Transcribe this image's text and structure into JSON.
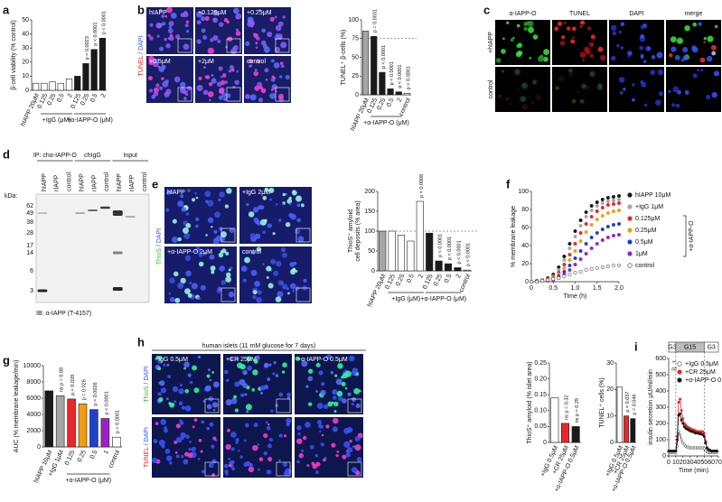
{
  "chart_data": [
    {
      "panel": "a",
      "type": "bar",
      "ylabel": "β-cell viability (% control)",
      "categories": [
        "hIAPP 20μM",
        "0.125",
        "0.25",
        "0.5",
        "2",
        "0.125",
        "0.25",
        "0.5",
        "2"
      ],
      "values": [
        5,
        5,
        6,
        5,
        8,
        10,
        19,
        29,
        37
      ],
      "colors": [
        "#ffffff",
        "#ffffff",
        "#ffffff",
        "#ffffff",
        "#ffffff",
        "#1a1a1a",
        "#1a1a1a",
        "#1a1a1a",
        "#1a1a1a"
      ],
      "groups": [
        "+IgG (μM)",
        "+α-IAPP-O (μM)"
      ],
      "annotations": [
        "p = 0.0023",
        "p < 0.0001",
        "p < 0.0001"
      ],
      "ylim": [
        0,
        50
      ],
      "yticks": [
        0,
        10,
        20,
        30,
        40,
        50
      ]
    },
    {
      "type": "bar",
      "ylabel": "TUNEL⁺ β-cells (%)",
      "categories": [
        "hIAPP 20μM",
        "0.125",
        "0.25",
        "0.5",
        "2",
        "control"
      ],
      "values": [
        85,
        78,
        30,
        8,
        4,
        2
      ],
      "colors": [
        "#a6a6a6",
        "#1a1a1a",
        "#1a1a1a",
        "#1a1a1a",
        "#1a1a1a",
        "#ffffff"
      ],
      "groups": [
        "+α-IAPP-O (μM)"
      ],
      "annotations": [
        "p = 0.0031",
        "p < 0.0001",
        "p < 0.0001",
        "p < 0.0001",
        "p < 0.0001"
      ],
      "reference_line": 75,
      "ylim": [
        0,
        100
      ],
      "yticks": [
        0,
        25,
        50,
        75,
        100
      ]
    },
    {
      "type": "bar",
      "ylabel": [
        "ThioS⁺ amyloid",
        "cell deposits (% area)"
      ],
      "categories": [
        "hIAPP 20μM",
        "0.125",
        "0.25",
        "0.5",
        "2",
        "0.125",
        "0.25",
        "0.5",
        "2",
        "control"
      ],
      "values": [
        100,
        100,
        90,
        75,
        175,
        95,
        25,
        18,
        8,
        2
      ],
      "colors": [
        "#a6a6a6",
        "#ffffff",
        "#ffffff",
        "#ffffff",
        "#ffffff",
        "#1a1a1a",
        "#1a1a1a",
        "#1a1a1a",
        "#1a1a1a",
        "#ffffff"
      ],
      "groups": [
        "+IgG (μM)",
        "+α-IAPP-O (μM)"
      ],
      "annotations": [
        "p = 0.0008",
        "p < 0.0001",
        "p < 0.0001",
        "p < 0.0001",
        "p < 0.0001"
      ],
      "reference_line": 100,
      "ylim": [
        0,
        200
      ],
      "yticks": [
        0,
        50,
        100,
        150,
        200
      ]
    },
    {
      "panel": "f",
      "type": "line",
      "xlabel": "Time (h)",
      "ylabel": "% membrane leakage",
      "x": [
        0,
        0.125,
        0.25,
        0.375,
        0.5,
        0.625,
        0.75,
        0.875,
        1,
        1.125,
        1.25,
        1.375,
        1.5,
        1.625,
        1.75,
        1.875,
        2
      ],
      "series": [
        {
          "name": "hIAPP 10μM",
          "color": "#1a1a1a",
          "values": [
            0,
            1,
            2,
            4,
            8,
            16,
            28,
            42,
            56,
            68,
            77,
            84,
            88,
            91,
            93,
            94,
            95
          ]
        },
        {
          "name": "+IgG 1μM",
          "color": "#a6a6a6",
          "values": [
            0,
            1,
            2,
            3,
            6,
            13,
            24,
            37,
            50,
            62,
            72,
            79,
            84,
            87,
            89,
            90,
            91
          ]
        },
        {
          "name": "0.125μM",
          "color": "#e8282a",
          "values": [
            0,
            1,
            1,
            3,
            5,
            10,
            19,
            30,
            42,
            54,
            64,
            72,
            78,
            82,
            85,
            86,
            87
          ]
        },
        {
          "name": "0.25μM",
          "color": "#f39c12",
          "values": [
            0,
            0,
            1,
            2,
            4,
            8,
            15,
            24,
            34,
            45,
            55,
            63,
            69,
            73,
            76,
            78,
            79
          ]
        },
        {
          "name": "0.5μM",
          "color": "#1f3fcc",
          "values": [
            0,
            0,
            1,
            2,
            3,
            6,
            11,
            18,
            26,
            34,
            42,
            49,
            54,
            58,
            61,
            63,
            64
          ]
        },
        {
          "name": "1μM",
          "color": "#a020c8",
          "values": [
            0,
            0,
            1,
            1,
            2,
            4,
            8,
            13,
            19,
            25,
            31,
            37,
            42,
            46,
            49,
            51,
            52
          ]
        },
        {
          "name": "control",
          "color": "#ffffff",
          "values": [
            0,
            0,
            1,
            2,
            3,
            4,
            6,
            8,
            10,
            11,
            13,
            14,
            15,
            16,
            17,
            18,
            18
          ]
        }
      ],
      "legend_bracket": "+α-IAPP-O",
      "xlim": [
        0,
        2
      ],
      "xticks": [
        0,
        0.5,
        {
          "value": 1,
          "label": "1.0"
        },
        1.5,
        {
          "value": 2,
          "label": "2.0"
        }
      ],
      "ylim": [
        0,
        100
      ],
      "yticks": [
        0,
        20,
        40,
        60,
        80,
        100
      ]
    },
    {
      "panel": "g",
      "type": "bar",
      "ylabel": "AUC (% membrane leakage/min)",
      "categories": [
        "hIAPP 10μM",
        "+IgG 1μM",
        "0.125",
        "0.25",
        "0.5",
        "1",
        "control"
      ],
      "values": [
        6900,
        6300,
        5900,
        5300,
        4600,
        3500,
        1200
      ],
      "colors": [
        "#1a1a1a",
        "#a6a6a6",
        "#e8282a",
        "#f39c12",
        "#1f3fcc",
        "#a020c8",
        "#ffffff"
      ],
      "groups": [
        "+α-IAPP-O (μM)"
      ],
      "annotations": [
        "ns p = 0.88",
        "p = 0.028",
        "p = 0.026",
        "p = 0.0026",
        "p < 0.0001",
        "p < 0.0001"
      ],
      "ylim": [
        0,
        10000
      ],
      "yticks": [
        0,
        2000,
        4000,
        6000,
        8000,
        10000
      ]
    },
    {
      "type": "bar",
      "ylabel": "ThioS⁺ amyloid (% islet area)",
      "categories": [
        "+IgG 0.5μM",
        "+CR 25μM",
        "+α-IAPP-O 0.5μM"
      ],
      "values": [
        0.14,
        0.06,
        0.05
      ],
      "colors": [
        "#ffffff",
        "#e8282a",
        "#1a1a1a"
      ],
      "annotations": [
        "ns p = 0.32",
        "ns p = 0.29"
      ],
      "ylim": [
        0,
        0.25
      ],
      "yticks": [
        0,
        0.05,
        {
          "value": 0.1,
          "label": "0.10"
        },
        0.15,
        {
          "value": 0.2,
          "label": "0.20"
        },
        0.25
      ]
    },
    {
      "type": "bar",
      "ylabel": "TUNEL⁺ cells (%)",
      "categories": [
        "+IgG 0.5μM",
        "+CR 25μM",
        "+α-IAPP-O 0.5μM"
      ],
      "values": [
        21,
        10,
        9
      ],
      "colors": [
        "#ffffff",
        "#e8282a",
        "#1a1a1a"
      ],
      "annotations": [
        "p = 0.037",
        "p = 0.046"
      ],
      "ylim": [
        0,
        30
      ],
      "yticks": [
        0,
        10,
        20,
        30
      ]
    },
    {
      "panel": "i",
      "type": "line",
      "connect": true,
      "xlabel": "Time (min)",
      "ylabel": "insulin secretion μU/ml/min",
      "x": [
        0,
        2,
        4,
        6,
        8,
        10,
        12,
        14,
        16,
        18,
        20,
        22,
        24,
        26,
        28,
        30,
        32,
        34,
        36,
        38,
        40,
        42,
        44,
        46,
        48,
        50,
        52,
        54,
        56,
        58,
        60,
        62,
        64,
        66,
        68
      ],
      "series": [
        {
          "name": "+IgG 0.5μM",
          "color": "#ffffff",
          "values": [
            20,
            20,
            20,
            20,
            20,
            20,
            60,
            150,
            130,
            100,
            80,
            70,
            60,
            55,
            55,
            50,
            50,
            50,
            50,
            50,
            50,
            50,
            50,
            50,
            50,
            45,
            35,
            25,
            20,
            20,
            20,
            20,
            20,
            20,
            20
          ]
        },
        {
          "name": "+CR 25μM",
          "color": "#e8282a",
          "values": [
            30,
            30,
            30,
            30,
            30,
            30,
            120,
            330,
            350,
            280,
            230,
            200,
            190,
            180,
            175,
            170,
            165,
            160,
            160,
            155,
            150,
            150,
            150,
            150,
            150,
            140,
            90,
            50,
            40,
            35,
            30,
            30,
            30,
            30,
            30
          ]
        },
        {
          "name": "+α-IAPP-O 0.5μM",
          "color": "#1a1a1a",
          "values": [
            30,
            30,
            30,
            30,
            30,
            30,
            100,
            250,
            260,
            220,
            200,
            180,
            170,
            165,
            160,
            155,
            150,
            150,
            145,
            140,
            140,
            140,
            135,
            135,
            130,
            120,
            80,
            50,
            40,
            35,
            30,
            30,
            30,
            30,
            30
          ]
        }
      ],
      "phases": [
        {
          "label": "G3",
          "from": 0,
          "to": 10,
          "color": "#ffffff"
        },
        {
          "label": "G15",
          "from": 10,
          "to": 50,
          "color": "#bdbdbd"
        },
        {
          "label": "G3",
          "from": 50,
          "to": 70,
          "color": "#ffffff"
        }
      ],
      "annotations": [
        "**",
        "##"
      ],
      "xlim": [
        0,
        70
      ],
      "xticks": [
        0,
        10,
        20,
        30,
        40,
        50,
        60,
        70
      ],
      "ylim": [
        0,
        600
      ],
      "yticks": [
        0,
        100,
        200,
        300,
        400,
        500,
        600
      ]
    }
  ],
  "images": [
    {
      "panel": "b",
      "stain": [
        "TUNEL",
        " / DAPI"
      ],
      "tiles": [
        "hIAPP",
        "+0.125μM",
        "+0.25μM",
        "+0.5μM",
        "+2μM",
        "control"
      ]
    },
    {
      "panel": "c",
      "columns": [
        "α-IAPP-O",
        "TUNEL",
        "DAPI",
        "merge"
      ],
      "rows": [
        "+hIAPP",
        "control"
      ]
    },
    {
      "panel": "e",
      "stain": [
        "ThioS",
        " / DAPI"
      ],
      "tiles": [
        "hIAPP",
        "+IgG 2μM",
        "+α-IAPP-O 2μM",
        "control"
      ]
    },
    {
      "panel": "h",
      "title": "human islets (11 mM glucose for 7 days)",
      "tiles": [
        "+IgG 0.5μM",
        "+CR 25μM",
        "+α-IAPP-O 0.5μM"
      ],
      "stains": [
        [
          "ThioS",
          " / DAPI"
        ],
        [
          "TUNEL",
          " / DAPI"
        ]
      ]
    }
  ],
  "blot": {
    "panel": "d",
    "groups": [
      "IP: chα-IAPP-O",
      "chIgG",
      "Input"
    ],
    "lanes": [
      "hIAPP",
      "rIAPP",
      "control"
    ],
    "unit": "kDa:",
    "markers": [
      62,
      49,
      38,
      28,
      17,
      14,
      6,
      3
    ],
    "ib": "IB: α-IAPP (T-4157)"
  }
}
